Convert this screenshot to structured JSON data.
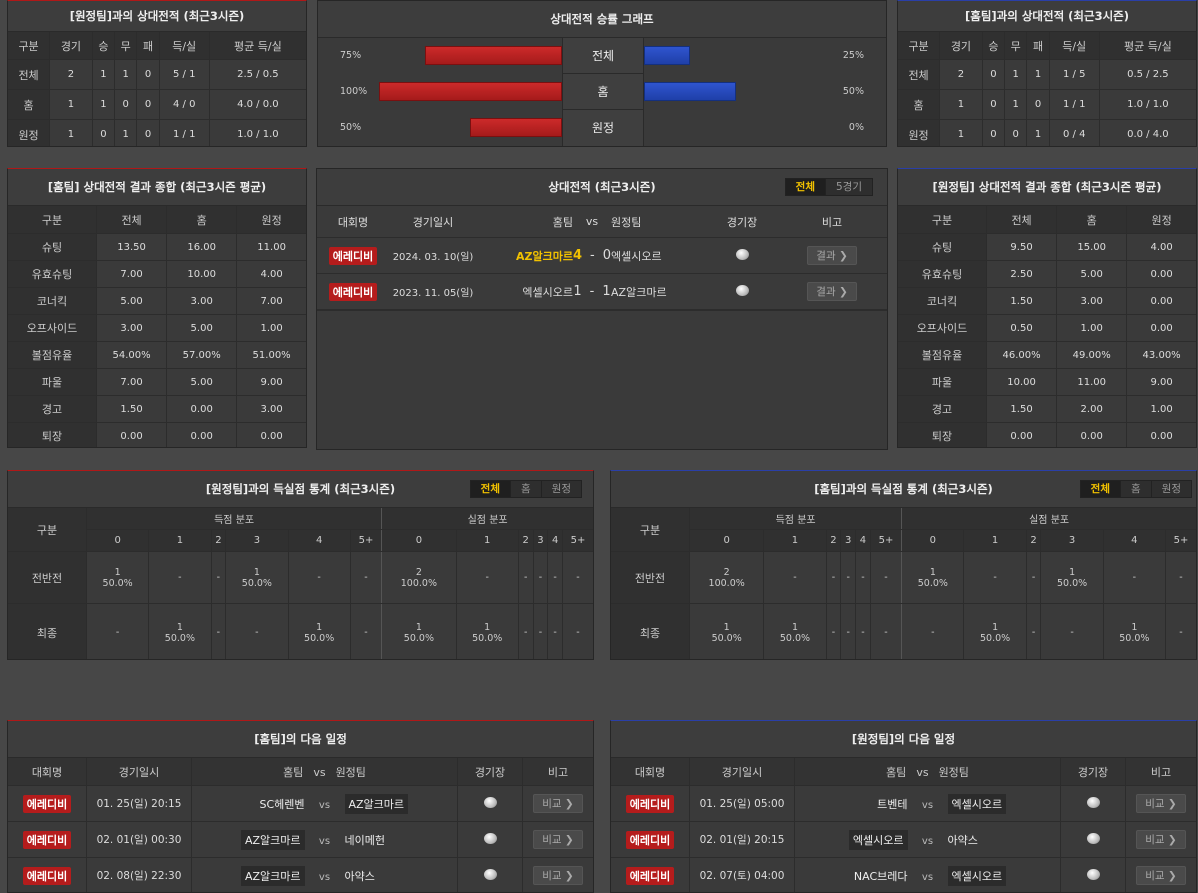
{
  "h2h_away": {
    "title": "[원정팀]과의 상대전적 (최근3시즌)",
    "headers": [
      "구분",
      "경기",
      "승",
      "무",
      "패",
      "득/실",
      "평균 득/실"
    ],
    "rows": [
      [
        "전체",
        "2",
        "1",
        "1",
        "0",
        "5 / 1",
        "2.5 / 0.5"
      ],
      [
        "홈",
        "1",
        "1",
        "0",
        "0",
        "4 / 0",
        "4.0 / 0.0"
      ],
      [
        "원정",
        "1",
        "0",
        "1",
        "0",
        "1 / 1",
        "1.0 / 1.0"
      ]
    ]
  },
  "graph": {
    "title": "상대전적 승률 그래프",
    "rows": [
      {
        "label": "전체",
        "left_pct": "75%",
        "right_pct": "25%",
        "left": 75,
        "right": 25
      },
      {
        "label": "홈",
        "left_pct": "100%",
        "right_pct": "50%",
        "left": 100,
        "right": 50
      },
      {
        "label": "원정",
        "left_pct": "50%",
        "right_pct": "0%",
        "left": 50,
        "right": 0
      }
    ]
  },
  "h2h_home": {
    "title": "[홈팀]과의 상대전적 (최근3시즌)",
    "headers": [
      "구분",
      "경기",
      "승",
      "무",
      "패",
      "득/실",
      "평균 득/실"
    ],
    "rows": [
      [
        "전체",
        "2",
        "0",
        "1",
        "1",
        "1 / 5",
        "0.5 / 2.5"
      ],
      [
        "홈",
        "1",
        "0",
        "1",
        "0",
        "1 / 1",
        "1.0 / 1.0"
      ],
      [
        "원정",
        "1",
        "0",
        "0",
        "1",
        "0 / 4",
        "0.0 / 4.0"
      ]
    ]
  },
  "home_summary": {
    "title": "[홈팀] 상대전적 결과 종합 (최근3시즌 평균)",
    "headers": [
      "구분",
      "전체",
      "홈",
      "원정"
    ],
    "rows": [
      [
        "슈팅",
        "13.50",
        "16.00",
        "11.00"
      ],
      [
        "유효슈팅",
        "7.00",
        "10.00",
        "4.00"
      ],
      [
        "코너킥",
        "5.00",
        "3.00",
        "7.00"
      ],
      [
        "오프사이드",
        "3.00",
        "5.00",
        "1.00"
      ],
      [
        "볼점유율",
        "54.00%",
        "57.00%",
        "51.00%"
      ],
      [
        "파울",
        "7.00",
        "5.00",
        "9.00"
      ],
      [
        "경고",
        "1.50",
        "0.00",
        "3.00"
      ],
      [
        "퇴장",
        "0.00",
        "0.00",
        "0.00"
      ]
    ]
  },
  "h2h_list": {
    "title": "상대전적 (최근3시즌)",
    "tabs": [
      "전체",
      "5경기"
    ],
    "headers": {
      "league": "대회명",
      "date": "경기일시",
      "home": "홈팀",
      "vs": "vs",
      "away": "원정팀",
      "venue": "경기장",
      "note": "비고"
    },
    "matches": [
      {
        "league": "에레디비",
        "date": "2024. 03. 10(일)",
        "home": "AZ알크마르",
        "home_score": "4",
        "dash": "-",
        "away_score": "0",
        "away": "엑셀시오르",
        "btn": "결과 ❯"
      },
      {
        "league": "에레디비",
        "date": "2023. 11. 05(일)",
        "home": "엑셀시오르",
        "home_score": "1",
        "dash": "-",
        "away_score": "1",
        "away": "AZ알크마르",
        "btn": "결과 ❯"
      }
    ]
  },
  "away_summary": {
    "title": "[원정팀] 상대전적 결과 종합 (최근3시즌 평균)",
    "headers": [
      "구분",
      "전체",
      "홈",
      "원정"
    ],
    "rows": [
      [
        "슈팅",
        "9.50",
        "15.00",
        "4.00"
      ],
      [
        "유효슈팅",
        "2.50",
        "5.00",
        "0.00"
      ],
      [
        "코너킥",
        "1.50",
        "3.00",
        "0.00"
      ],
      [
        "오프사이드",
        "0.50",
        "1.00",
        "0.00"
      ],
      [
        "볼점유율",
        "46.00%",
        "49.00%",
        "43.00%"
      ],
      [
        "파울",
        "10.00",
        "11.00",
        "9.00"
      ],
      [
        "경고",
        "1.50",
        "2.00",
        "1.00"
      ],
      [
        "퇴장",
        "0.00",
        "0.00",
        "0.00"
      ]
    ]
  },
  "dist_away": {
    "title": "[원정팀]과의 득실점 통계 (최근3시즌)",
    "tabs": [
      "전체",
      "홈",
      "원정"
    ],
    "label_col": "구분",
    "scored_label": "득점 분포",
    "conceded_label": "실점 분포",
    "buckets": [
      "0",
      "1",
      "2",
      "3",
      "4",
      "5+"
    ],
    "rows": [
      {
        "label": "전반전",
        "cells": [
          [
            "1",
            "50.0%"
          ],
          [
            "-",
            ""
          ],
          [
            "-",
            ""
          ],
          [
            "1",
            "50.0%"
          ],
          [
            "-",
            ""
          ],
          [
            "-",
            ""
          ],
          [
            "2",
            "100.0%"
          ],
          [
            "-",
            ""
          ],
          [
            "-",
            ""
          ],
          [
            "-",
            ""
          ],
          [
            "-",
            ""
          ],
          [
            "-",
            ""
          ]
        ]
      },
      {
        "label": "최종",
        "cells": [
          [
            "-",
            ""
          ],
          [
            "1",
            "50.0%"
          ],
          [
            "-",
            ""
          ],
          [
            "-",
            ""
          ],
          [
            "1",
            "50.0%"
          ],
          [
            "-",
            ""
          ],
          [
            "1",
            "50.0%"
          ],
          [
            "1",
            "50.0%"
          ],
          [
            "-",
            ""
          ],
          [
            "-",
            ""
          ],
          [
            "-",
            ""
          ],
          [
            "-",
            ""
          ]
        ]
      }
    ]
  },
  "dist_home": {
    "title": "[홈팀]과의 득실점 통계 (최근3시즌)",
    "tabs": [
      "전체",
      "홈",
      "원정"
    ],
    "label_col": "구분",
    "scored_label": "득점 분포",
    "conceded_label": "실점 분포",
    "buckets": [
      "0",
      "1",
      "2",
      "3",
      "4",
      "5+"
    ],
    "rows": [
      {
        "label": "전반전",
        "cells": [
          [
            "2",
            "100.0%"
          ],
          [
            "-",
            ""
          ],
          [
            "-",
            ""
          ],
          [
            "-",
            ""
          ],
          [
            "-",
            ""
          ],
          [
            "-",
            ""
          ],
          [
            "1",
            "50.0%"
          ],
          [
            "-",
            ""
          ],
          [
            "-",
            ""
          ],
          [
            "1",
            "50.0%"
          ],
          [
            "-",
            ""
          ],
          [
            "-",
            ""
          ]
        ]
      },
      {
        "label": "최종",
        "cells": [
          [
            "1",
            "50.0%"
          ],
          [
            "1",
            "50.0%"
          ],
          [
            "-",
            ""
          ],
          [
            "-",
            ""
          ],
          [
            "-",
            ""
          ],
          [
            "-",
            ""
          ],
          [
            "-",
            ""
          ],
          [
            "1",
            "50.0%"
          ],
          [
            "-",
            ""
          ],
          [
            "-",
            ""
          ],
          [
            "1",
            "50.0%"
          ],
          [
            "-",
            ""
          ]
        ]
      }
    ]
  },
  "sched_home": {
    "title": "[홈팀]의 다음 일정",
    "headers": {
      "league": "대회명",
      "date": "경기일시",
      "home": "홈팀",
      "vs": "vs",
      "away": "원정팀",
      "venue": "경기장",
      "note": "비고"
    },
    "games": [
      {
        "league": "에레디비",
        "date": "01. 25(일) 20:15",
        "home": "SC헤렌벤",
        "vs": "vs",
        "away": "AZ알크마르",
        "btn": "비교 ❯",
        "hl": "away"
      },
      {
        "league": "에레디비",
        "date": "02. 01(일) 00:30",
        "home": "AZ알크마르",
        "vs": "vs",
        "away": "네이메헌",
        "btn": "비교 ❯",
        "hl": "home"
      },
      {
        "league": "에레디비",
        "date": "02. 08(일) 22:30",
        "home": "AZ알크마르",
        "vs": "vs",
        "away": "아약스",
        "btn": "비교 ❯",
        "hl": "home"
      }
    ]
  },
  "sched_away": {
    "title": "[원정팀]의 다음 일정",
    "headers": {
      "league": "대회명",
      "date": "경기일시",
      "home": "홈팀",
      "vs": "vs",
      "away": "원정팀",
      "venue": "경기장",
      "note": "비고"
    },
    "games": [
      {
        "league": "에레디비",
        "date": "01. 25(일) 05:00",
        "home": "트벤테",
        "vs": "vs",
        "away": "엑셀시오르",
        "btn": "비교 ❯",
        "hl": "away"
      },
      {
        "league": "에레디비",
        "date": "02. 01(일) 20:15",
        "home": "엑셀시오르",
        "vs": "vs",
        "away": "아약스",
        "btn": "비교 ❯",
        "hl": "home"
      },
      {
        "league": "에레디비",
        "date": "02. 07(토) 04:00",
        "home": "NAC브레다",
        "vs": "vs",
        "away": "엑셀시오르",
        "btn": "비교 ❯",
        "hl": "away"
      }
    ]
  }
}
